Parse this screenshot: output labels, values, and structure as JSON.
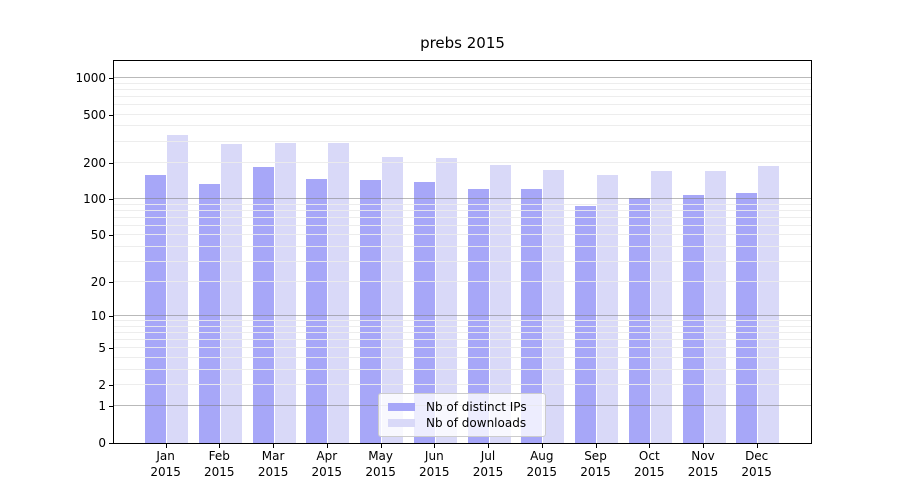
{
  "title": "prebs 2015",
  "legend": {
    "items": [
      {
        "label": "Nb of distinct IPs",
        "color": "#a7a7f8"
      },
      {
        "label": "Nb of downloads",
        "color": "#d9d9f8"
      }
    ]
  },
  "chart_data": {
    "type": "bar",
    "title": "prebs 2015",
    "categories": [
      "Jan 2015",
      "Feb 2015",
      "Mar 2015",
      "Apr 2015",
      "May 2015",
      "Jun 2015",
      "Jul 2015",
      "Aug 2015",
      "Sep 2015",
      "Oct 2015",
      "Nov 2015",
      "Dec 2015"
    ],
    "series": [
      {
        "name": "Nb of distinct IPs",
        "color": "#a7a7f8",
        "values": [
          160,
          135,
          184,
          148,
          145,
          139,
          122,
          121,
          88,
          102,
          108,
          113
        ]
      },
      {
        "name": "Nb of downloads",
        "color": "#d9d9f8",
        "values": [
          340,
          287,
          294,
          292,
          224,
          220,
          193,
          174,
          160,
          172,
          170,
          188
        ]
      }
    ],
    "yscale": "log1p",
    "ylim": [
      0,
      1420
    ],
    "y_ticks": [
      0,
      1,
      2,
      5,
      10,
      20,
      50,
      100,
      200,
      500,
      1000
    ],
    "grid_major_at": [
      1,
      10,
      100,
      1000
    ],
    "grid": "both",
    "xlabel": "",
    "ylabel": "",
    "legend_position": "lower center"
  }
}
